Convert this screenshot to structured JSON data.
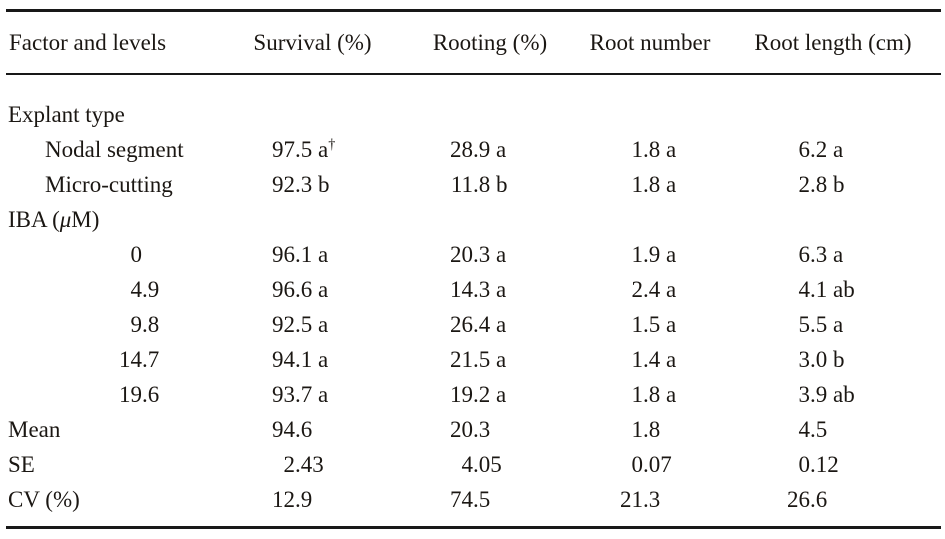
{
  "table": {
    "columns": [
      "Factor and levels",
      "Survival (%)",
      "Rooting (%)",
      "Root number",
      "Root length (cm)"
    ],
    "rows": [
      {
        "label": "Explant type",
        "indent": 0,
        "numeric_label": false,
        "values": [
          "",
          "",
          "",
          ""
        ]
      },
      {
        "label": "Nodal segment",
        "indent": 1,
        "numeric_label": false,
        "values": [
          "97.5 a†",
          "28.9 a",
          "1.8 a",
          "6.2 a"
        ]
      },
      {
        "label": "Micro-cutting",
        "indent": 1,
        "numeric_label": false,
        "values": [
          "92.3 b",
          "11.8 b",
          "1.8 a",
          "2.8 b"
        ]
      },
      {
        "label": "IBA (μM)",
        "indent": 0,
        "numeric_label": false,
        "values": [
          "",
          "",
          "",
          ""
        ]
      },
      {
        "label": "0",
        "indent": 2,
        "numeric_label": true,
        "values": [
          "96.1 a",
          "20.3 a",
          "1.9 a",
          "6.3 a"
        ]
      },
      {
        "label": "4.9",
        "indent": 2,
        "numeric_label": true,
        "values": [
          "96.6 a",
          "14.3 a",
          "2.4 a",
          "4.1 ab"
        ]
      },
      {
        "label": "9.8",
        "indent": 2,
        "numeric_label": true,
        "values": [
          "92.5 a",
          "26.4 a",
          "1.5 a",
          "5.5 a"
        ]
      },
      {
        "label": "14.7",
        "indent": 2,
        "numeric_label": true,
        "values": [
          "94.1 a",
          "21.5 a",
          "1.4 a",
          "3.0 b"
        ]
      },
      {
        "label": "19.6",
        "indent": 2,
        "numeric_label": true,
        "values": [
          "93.7 a",
          "19.2 a",
          "1.8 a",
          "3.9 ab"
        ]
      },
      {
        "label": "Mean",
        "indent": 0,
        "numeric_label": false,
        "values": [
          "94.6",
          "20.3",
          "1.8",
          "4.5"
        ]
      },
      {
        "label": "SE",
        "indent": 0,
        "numeric_label": false,
        "values": [
          "2.43",
          "4.05",
          "0.07",
          "0.12"
        ]
      },
      {
        "label": "CV (%)",
        "indent": 0,
        "numeric_label": false,
        "values": [
          "12.9",
          "74.5",
          "21.3",
          "26.6"
        ]
      }
    ],
    "footnote_marker": "†"
  }
}
